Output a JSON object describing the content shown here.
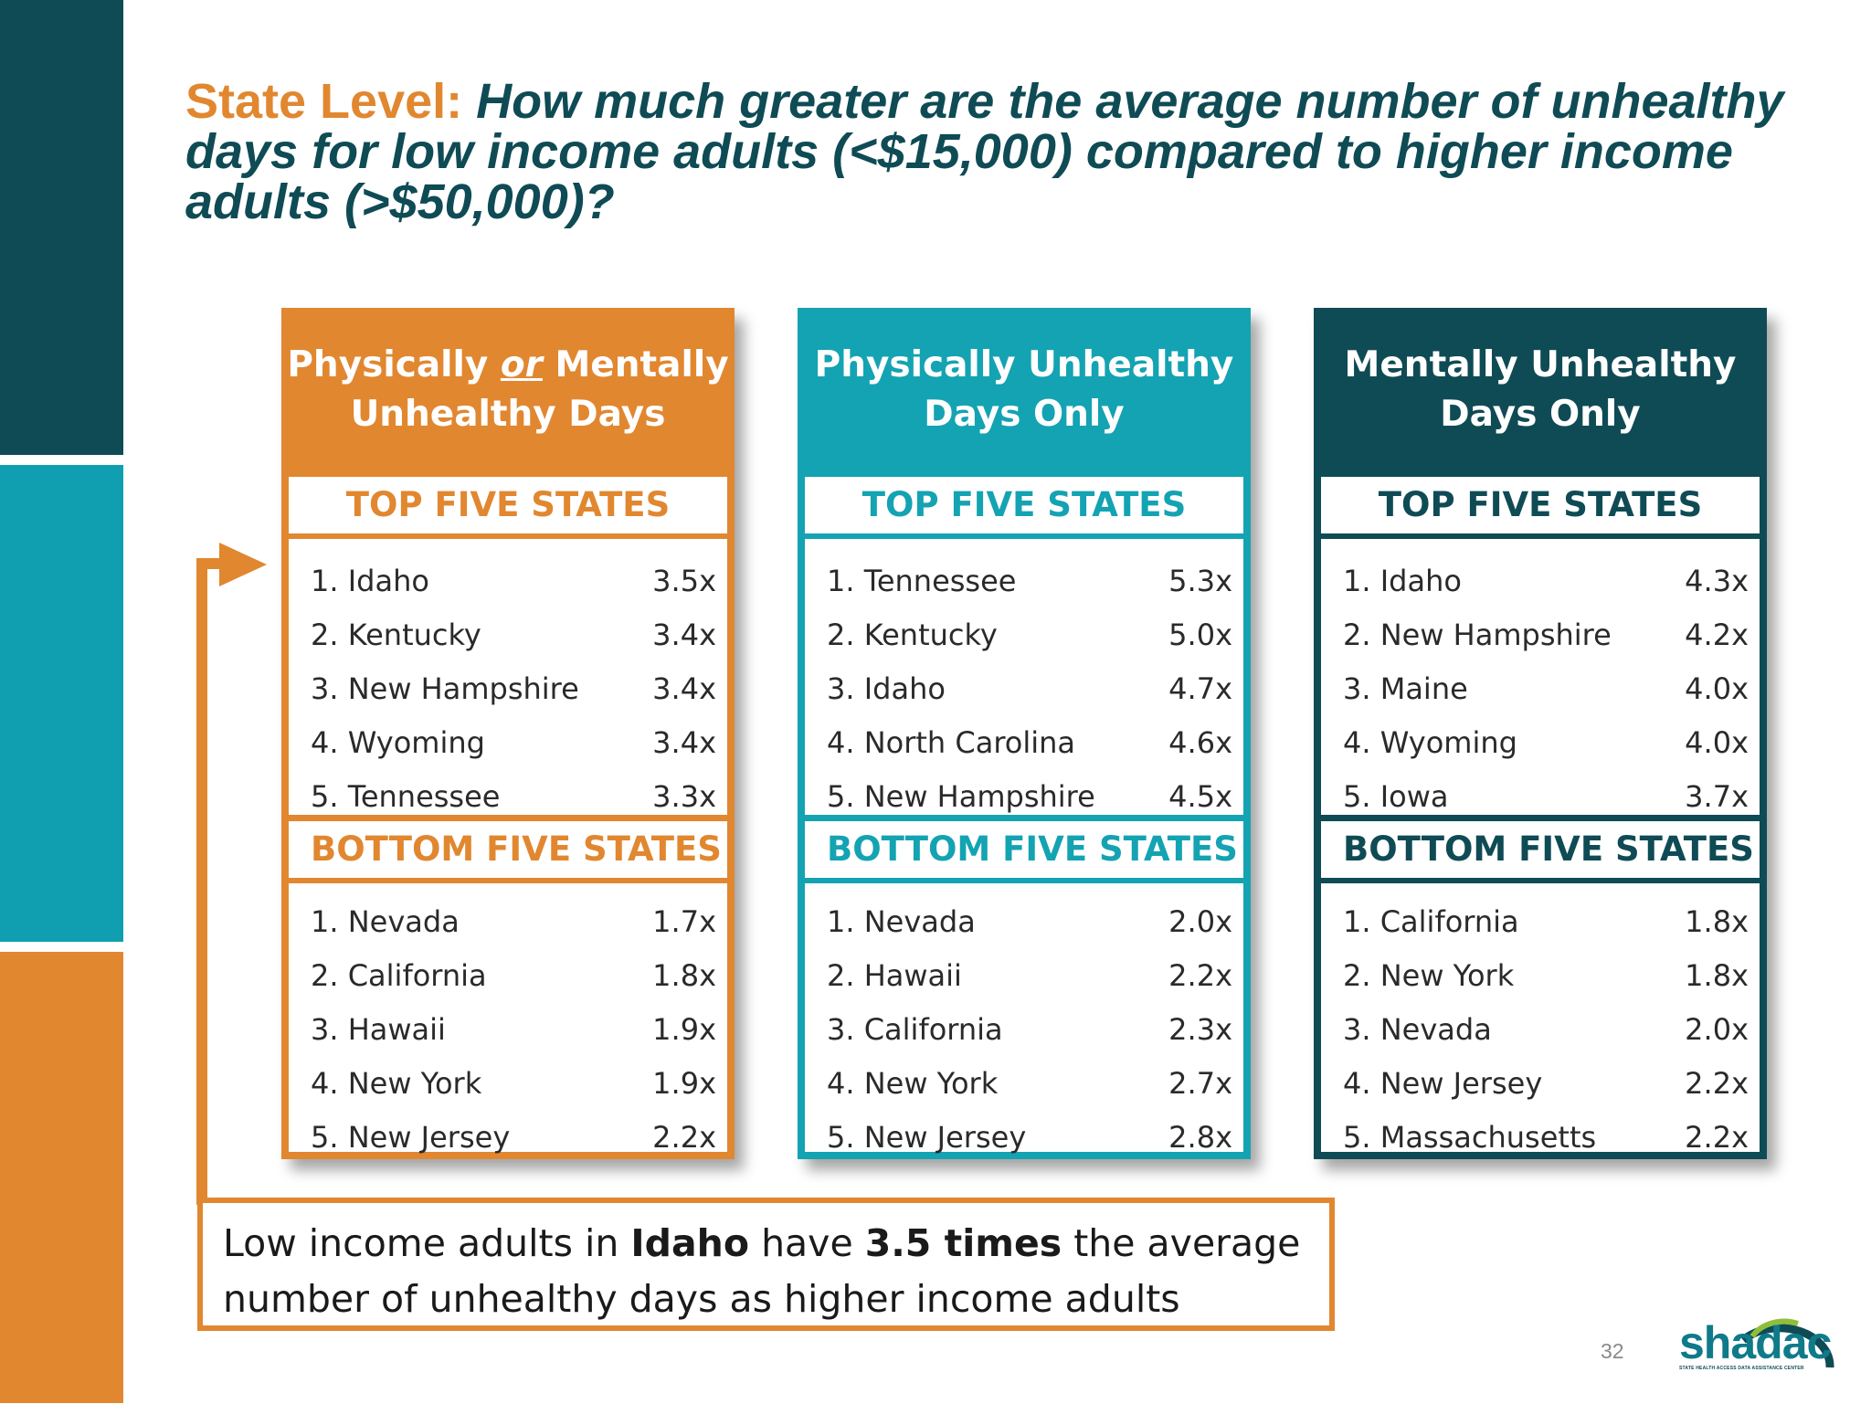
{
  "title": {
    "prefix": "State Level:",
    "question": "How much greater are the average number of unhealthy days for low income adults (<$15,000) compared to higher income adults (>$50,000)?"
  },
  "panels": [
    {
      "header_line1_a": "Physically ",
      "header_line1_em": "or",
      "header_line1_b": " Mentally",
      "header_line2": "Unhealthy Days",
      "top_label": "TOP FIVE STATES",
      "top": [
        {
          "state": "1. Idaho",
          "ratio": "3.5x"
        },
        {
          "state": "2. Kentucky",
          "ratio": "3.4x"
        },
        {
          "state": "3. New Hampshire",
          "ratio": "3.4x"
        },
        {
          "state": "4. Wyoming",
          "ratio": "3.4x"
        },
        {
          "state": "5. Tennessee",
          "ratio": "3.3x"
        }
      ],
      "bottom_label": "BOTTOM FIVE STATES",
      "bottom": [
        {
          "state": "1. Nevada",
          "ratio": "1.7x"
        },
        {
          "state": "2. California",
          "ratio": "1.8x"
        },
        {
          "state": "3. Hawaii",
          "ratio": "1.9x"
        },
        {
          "state": "4. New York",
          "ratio": "1.9x"
        },
        {
          "state": "5. New Jersey",
          "ratio": "2.2x"
        }
      ],
      "color": "#e18730"
    },
    {
      "header_line1": "Physically Unhealthy",
      "header_line2": "Days Only",
      "top_label": "TOP FIVE STATES",
      "top": [
        {
          "state": "1. Tennessee",
          "ratio": "5.3x"
        },
        {
          "state": "2. Kentucky",
          "ratio": "5.0x"
        },
        {
          "state": "3. Idaho",
          "ratio": "4.7x"
        },
        {
          "state": "4. North Carolina",
          "ratio": "4.6x"
        },
        {
          "state": "5. New Hampshire",
          "ratio": "4.5x"
        }
      ],
      "bottom_label": "BOTTOM FIVE STATES",
      "bottom": [
        {
          "state": "1. Nevada",
          "ratio": "2.0x"
        },
        {
          "state": "2. Hawaii",
          "ratio": "2.2x"
        },
        {
          "state": "3. California",
          "ratio": "2.3x"
        },
        {
          "state": "4. New York",
          "ratio": "2.7x"
        },
        {
          "state": "5. New Jersey",
          "ratio": "2.8x"
        }
      ],
      "color": "#14a3b2"
    },
    {
      "header_line1": "Mentally Unhealthy",
      "header_line2": "Days Only",
      "top_label": "TOP FIVE STATES",
      "top": [
        {
          "state": "1. Idaho",
          "ratio": "4.3x"
        },
        {
          "state": "2. New Hampshire",
          "ratio": "4.2x"
        },
        {
          "state": "3. Maine",
          "ratio": "4.0x"
        },
        {
          "state": "4. Wyoming",
          "ratio": "4.0x"
        },
        {
          "state": "5. Iowa",
          "ratio": "3.7x"
        }
      ],
      "bottom_label": "BOTTOM FIVE STATES",
      "bottom": [
        {
          "state": "1. California",
          "ratio": "1.8x"
        },
        {
          "state": "2. New York",
          "ratio": "1.8x"
        },
        {
          "state": "3. Nevada",
          "ratio": "2.0x"
        },
        {
          "state": "4. New Jersey",
          "ratio": "2.2x"
        },
        {
          "state": "5. Massachusetts",
          "ratio": "2.2x"
        }
      ],
      "color": "#0f4b55"
    }
  ],
  "callout": {
    "part1": "Low income adults in ",
    "bold1": "Idaho",
    "part2": " have ",
    "bold2": "3.5 times",
    "part3": " the average number of unhealthy days as higher income adults"
  },
  "footer": {
    "page_number": "32",
    "logo_text": "shadac",
    "logo_tagline": "STATE HEALTH ACCESS DATA ASSISTANCE CENTER"
  },
  "colors": {
    "orange": "#e18730",
    "teal": "#14a3b2",
    "dark_teal": "#0f4b55"
  }
}
